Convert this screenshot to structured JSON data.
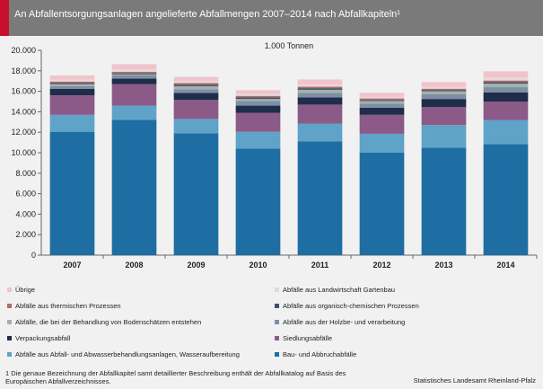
{
  "header": {
    "title": "An Abfallentsorgungsanlagen angelieferte Abfallmengen 2007–2014 nach Abfallkapiteln¹"
  },
  "chart_data": {
    "type": "bar",
    "stacked": true,
    "unit_label": "1.000 Tonnen",
    "categories": [
      "2007",
      "2008",
      "2009",
      "2010",
      "2011",
      "2012",
      "2013",
      "2014"
    ],
    "y_ticks": [
      "0",
      "2.000",
      "4.000",
      "6.000",
      "8.000",
      "10.000",
      "12.000",
      "14.000",
      "16.000",
      "18.000",
      "20.000"
    ],
    "ylim": [
      0,
      20000
    ],
    "grid": false,
    "legend_position": "bottom",
    "series": [
      {
        "name": "Bau- und Abbruchabfälle",
        "color": "#1f6ea3",
        "values": [
          12050,
          13200,
          11900,
          10400,
          11100,
          10000,
          10500,
          10850
        ]
      },
      {
        "name": "Abfälle aus Abfall- und Abwasserbehandlungsanlagen, Wasseraufbereitung",
        "color": "#5fa3c9",
        "values": [
          1650,
          1400,
          1400,
          1650,
          1750,
          1850,
          2200,
          2350
        ]
      },
      {
        "name": "Siedlungsabfälle",
        "color": "#8b5a87",
        "values": [
          1900,
          2100,
          1850,
          1850,
          1850,
          1850,
          1750,
          1800
        ]
      },
      {
        "name": "Verpackungsabfall",
        "color": "#1f2d4a",
        "values": [
          650,
          550,
          700,
          700,
          700,
          700,
          800,
          900
        ]
      },
      {
        "name": "Abfälle aus der Holzbe- und verarbeitung",
        "color": "#7d8fa8",
        "values": [
          250,
          300,
          350,
          450,
          450,
          400,
          450,
          500
        ]
      },
      {
        "name": "Abfälle, die bei der Behandlung von Bodenschätzen entstehen",
        "color": "#a3b1a8",
        "values": [
          200,
          100,
          300,
          200,
          300,
          250,
          300,
          350
        ]
      },
      {
        "name": "Abfälle aus organisch-chemischen Prozessen",
        "color": "#3a4f6b",
        "values": [
          100,
          100,
          150,
          150,
          150,
          100,
          100,
          150
        ]
      },
      {
        "name": "Abfälle aus thermischen Prozessen",
        "color": "#b26a6a",
        "values": [
          150,
          150,
          150,
          150,
          150,
          150,
          150,
          150
        ]
      },
      {
        "name": "Abfälle aus Landwirtschaft Gartenbau",
        "color": "#e8d8d8",
        "values": [
          200,
          250,
          200,
          200,
          200,
          150,
          200,
          300
        ]
      },
      {
        "name": "Übrige",
        "color": "#f0c4cc",
        "values": [
          400,
          500,
          400,
          350,
          500,
          400,
          450,
          600
        ]
      }
    ]
  },
  "legend": {
    "items": [
      {
        "label": "Übrige",
        "color": "#f0c4cc"
      },
      {
        "label": "Abfälle aus Landwirtschaft Gartenbau",
        "color": "#e8d8d8"
      },
      {
        "label": "Abfälle aus thermischen Prozessen",
        "color": "#b26a6a"
      },
      {
        "label": "Abfälle aus organisch-chemischen Prozessen",
        "color": "#3a4f6b"
      },
      {
        "label": "Abfälle, die bei der Behandlung von Bodenschätzen entstehen",
        "color": "#a3b1a8"
      },
      {
        "label": "Abfälle aus der Holzbe- und verarbeitung",
        "color": "#7d8fa8"
      },
      {
        "label": "Verpackungsabfall",
        "color": "#1f2d4a"
      },
      {
        "label": "Siedlungsabfälle",
        "color": "#8b5a87"
      },
      {
        "label": "Abfälle aus Abfall- und Abwasserbehandlungsanlagen, Wasseraufbereitung",
        "color": "#5fa3c9"
      },
      {
        "label": "Bau- und Abbruchabfälle",
        "color": "#1f6ea3"
      }
    ]
  },
  "footer": {
    "footnote": "1 Die genaue Bezeichnung der Abfallkapitel samt detaillierter Beschreibung enthält der Abfallkatalog auf Basis des Europäischen Abfallverzeichnisses.",
    "source": "Statistisches Landesamt Rheinland-Pfalz"
  }
}
